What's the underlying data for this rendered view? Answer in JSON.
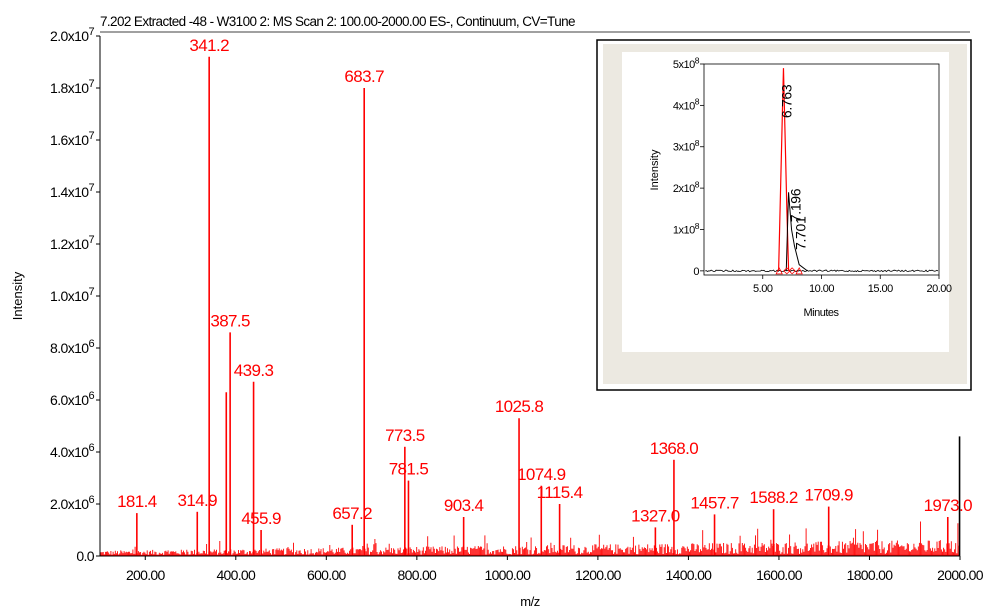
{
  "chart_data": [
    {
      "type": "line",
      "title": "7.202 Extracted -48 - W3100 2: MS Scan 2: 100.00-2000.00 ES-, Continuum, CV=Tune",
      "xlabel": "m/z",
      "ylabel": "Intensity",
      "xlim": [
        100,
        2000
      ],
      "ylim": [
        0,
        20000000
      ],
      "color": "#ff0000",
      "xticks": [
        {
          "value": 200,
          "label": "200.00"
        },
        {
          "value": 400,
          "label": "400.00"
        },
        {
          "value": 600,
          "label": "600.00"
        },
        {
          "value": 800,
          "label": "800.00"
        },
        {
          "value": 1000,
          "label": "1000.00"
        },
        {
          "value": 1200,
          "label": "1200.00"
        },
        {
          "value": 1400,
          "label": "1400.00"
        },
        {
          "value": 1600,
          "label": "1600.00"
        },
        {
          "value": 1800,
          "label": "1800.00"
        },
        {
          "value": 2000,
          "label": "2000.00"
        }
      ],
      "yticks": [
        {
          "value": 0,
          "mant": "0.0",
          "exp": ""
        },
        {
          "value": 2000000,
          "mant": "2.0x10",
          "exp": "6"
        },
        {
          "value": 4000000,
          "mant": "4.0x10",
          "exp": "6"
        },
        {
          "value": 6000000,
          "mant": "6.0x10",
          "exp": "6"
        },
        {
          "value": 8000000,
          "mant": "8.0x10",
          "exp": "6"
        },
        {
          "value": 10000000,
          "mant": "1.0x10",
          "exp": "7"
        },
        {
          "value": 12000000,
          "mant": "1.2x10",
          "exp": "7"
        },
        {
          "value": 14000000,
          "mant": "1.4x10",
          "exp": "7"
        },
        {
          "value": 16000000,
          "mant": "1.6x10",
          "exp": "7"
        },
        {
          "value": 18000000,
          "mant": "1.8x10",
          "exp": "7"
        },
        {
          "value": 20000000,
          "mant": "2.0x10",
          "exp": "7"
        }
      ],
      "peaks": [
        {
          "x": 181.4,
          "y": 1650000,
          "label": "181.4"
        },
        {
          "x": 314.9,
          "y": 1700000,
          "label": "314.9"
        },
        {
          "x": 341.2,
          "y": 19200000,
          "label": "341.2"
        },
        {
          "x": 379,
          "y": 6300000,
          "label": ""
        },
        {
          "x": 387.5,
          "y": 8600000,
          "label": "387.5"
        },
        {
          "x": 439.3,
          "y": 6700000,
          "label": "439.3"
        },
        {
          "x": 455.9,
          "y": 1000000,
          "label": "455.9"
        },
        {
          "x": 657.2,
          "y": 1200000,
          "label": "657.2"
        },
        {
          "x": 683.7,
          "y": 18000000,
          "label": "683.7"
        },
        {
          "x": 773.5,
          "y": 4200000,
          "label": "773.5"
        },
        {
          "x": 781.5,
          "y": 2900000,
          "label": "781.5"
        },
        {
          "x": 903.4,
          "y": 1500000,
          "label": "903.4"
        },
        {
          "x": 1025.8,
          "y": 5300000,
          "label": "1025.8"
        },
        {
          "x": 1074.9,
          "y": 2700000,
          "label": "1074.9"
        },
        {
          "x": 1115.4,
          "y": 2000000,
          "label": "1115.4"
        },
        {
          "x": 1327.0,
          "y": 1100000,
          "label": "1327.0"
        },
        {
          "x": 1368.0,
          "y": 3700000,
          "label": "1368.0"
        },
        {
          "x": 1457.7,
          "y": 1600000,
          "label": "1457.7"
        },
        {
          "x": 1588.2,
          "y": 1800000,
          "label": "1588.2"
        },
        {
          "x": 1709.9,
          "y": 1900000,
          "label": "1709.9"
        },
        {
          "x": 1973.0,
          "y": 1500000,
          "label": "1973.0"
        },
        {
          "x": 1999,
          "y": 4600000,
          "label": ""
        }
      ]
    },
    {
      "type": "line",
      "xlabel": "Minutes",
      "ylabel": "Intensity",
      "xlim": [
        0,
        20
      ],
      "ylim": [
        -10000000,
        500000000
      ],
      "xticks": [
        {
          "value": 5,
          "label": "5.00"
        },
        {
          "value": 10,
          "label": "10.00"
        },
        {
          "value": 15,
          "label": "15.00"
        },
        {
          "value": 20,
          "label": "20.00"
        }
      ],
      "yticks": [
        {
          "value": 0,
          "mant": "0",
          "exp": ""
        },
        {
          "value": 100000000,
          "mant": "1x10",
          "exp": "8"
        },
        {
          "value": 200000000,
          "mant": "2x10",
          "exp": "8"
        },
        {
          "value": 300000000,
          "mant": "3x10",
          "exp": "8"
        },
        {
          "value": 400000000,
          "mant": "4x10",
          "exp": "8"
        },
        {
          "value": 500000000,
          "mant": "5x10",
          "exp": "8"
        }
      ],
      "peaks": [
        {
          "x": 6.763,
          "y": 490000000,
          "label": "6.763",
          "color": "#ff0000"
        },
        {
          "x": 7.196,
          "y": 190000000,
          "label": "7.196",
          "color": "#000000"
        },
        {
          "x": 7.701,
          "y": 60000000,
          "label": "7.701",
          "color": "#000000"
        }
      ]
    }
  ]
}
